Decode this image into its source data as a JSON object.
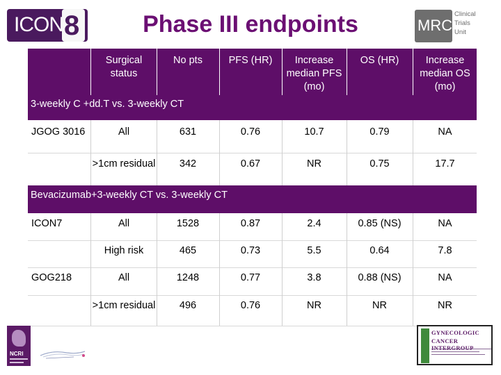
{
  "header": {
    "title": "Phase III endpoints",
    "logo_left": {
      "text": "ICON",
      "number": "8"
    },
    "logo_right": {
      "mrc": "MRC",
      "unit_lines": [
        "Clinical",
        "Trials",
        "Unit"
      ]
    }
  },
  "table": {
    "columns": [
      "Surgical status",
      "No pts",
      "PFS (HR)",
      "Increase median PFS (mo)",
      "OS (HR)",
      "Increase median OS (mo)"
    ],
    "sections": [
      {
        "label": "3-weekly C +dd.T vs. 3-weekly CT",
        "rows": [
          {
            "study": "JGOG 3016",
            "cells": [
              "All",
              "631",
              "0.76",
              "10.7",
              "0.79",
              "NA"
            ]
          },
          {
            "study": "",
            "cells": [
              ">1cm residual",
              "342",
              "0.67",
              "NR",
              "0.75",
              "17.7"
            ]
          }
        ]
      },
      {
        "label": "Bevacizumab+3-weekly CT vs. 3-weekly CT",
        "rows": [
          {
            "study": "ICON7",
            "cells": [
              "All",
              "1528",
              "0.87",
              "2.4",
              "0.85 (NS)",
              "NA"
            ]
          },
          {
            "study": "",
            "cells": [
              "High risk",
              "465",
              "0.73",
              "5.5",
              "0.64",
              "7.8"
            ]
          },
          {
            "study": "GOG218",
            "cells": [
              "All",
              "1248",
              "0.77",
              "3.8",
              "0.88 (NS)",
              "NA"
            ]
          },
          {
            "study": "",
            "cells": [
              ">1cm residual",
              "496",
              "0.76",
              "NR",
              "NR",
              "NR"
            ]
          }
        ]
      }
    ]
  },
  "footer": {
    "ncri_text": "NCRI",
    "gci_lines": [
      "GYNECOLOGIC",
      "CANCER INTERGROUP"
    ]
  },
  "colors": {
    "accent": "#5e0e68",
    "title": "#6b0f73"
  }
}
